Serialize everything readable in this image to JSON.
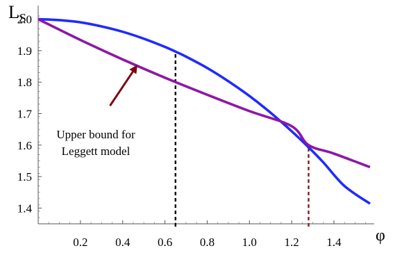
{
  "chart_data": {
    "type": "line",
    "xlabel": "φ",
    "ylabel": {
      "main": "L",
      "sub": "S"
    },
    "xlim": [
      0,
      1.5708
    ],
    "ylim": [
      1.35,
      2.03
    ],
    "xticks": [
      {
        "value": 0.2,
        "label": "0.2"
      },
      {
        "value": 0.4,
        "label": "0.4"
      },
      {
        "value": 0.6,
        "label": "0.6"
      },
      {
        "value": 0.8,
        "label": "0.8"
      },
      {
        "value": 1.0,
        "label": "1.0"
      },
      {
        "value": 1.2,
        "label": "1.2"
      },
      {
        "value": 1.4,
        "label": "1.4"
      }
    ],
    "yticks": [
      {
        "value": 1.4,
        "label": "1.4"
      },
      {
        "value": 1.5,
        "label": "1.5"
      },
      {
        "value": 1.6,
        "label": "1.6"
      },
      {
        "value": 1.7,
        "label": "1.7"
      },
      {
        "value": 1.8,
        "label": "1.8"
      },
      {
        "value": 1.9,
        "label": "1.9"
      },
      {
        "value": 2.0,
        "label": "2.0"
      }
    ],
    "grid": false,
    "series": [
      {
        "color": "#1f2bff",
        "x": [
          0,
          0.1,
          0.2,
          0.3,
          0.4,
          0.5,
          0.6,
          0.65,
          0.7,
          0.8,
          0.9,
          1.0,
          1.1,
          1.2,
          1.28,
          1.35,
          1.45,
          1.5708
        ],
        "y": [
          2.0,
          1.997,
          1.99,
          1.977,
          1.96,
          1.938,
          1.912,
          1.897,
          1.881,
          1.845,
          1.803,
          1.756,
          1.703,
          1.644,
          1.593,
          1.545,
          1.47,
          1.414
        ]
      },
      {
        "color": "#8e17a6",
        "x": [
          0,
          0.2,
          0.4,
          0.6,
          0.8,
          1.0,
          1.2,
          1.28,
          1.4,
          1.5708
        ],
        "y": [
          2.0,
          1.934,
          1.872,
          1.814,
          1.76,
          1.708,
          1.66,
          1.6,
          1.573,
          1.53
        ]
      }
    ],
    "vlines": [
      {
        "x": 0.65,
        "y_top": 1.897,
        "color": "#000000"
      },
      {
        "x": 1.28,
        "y_top": 1.6,
        "color": "#8b1a1a"
      }
    ],
    "annotation": {
      "lines": [
        "Upper bound for",
        "Leggett model"
      ],
      "arrow_color": "#7a0a14",
      "arrow_tip": [
        0.47,
        1.855
      ],
      "arrow_tail": [
        0.34,
        1.725
      ]
    }
  }
}
